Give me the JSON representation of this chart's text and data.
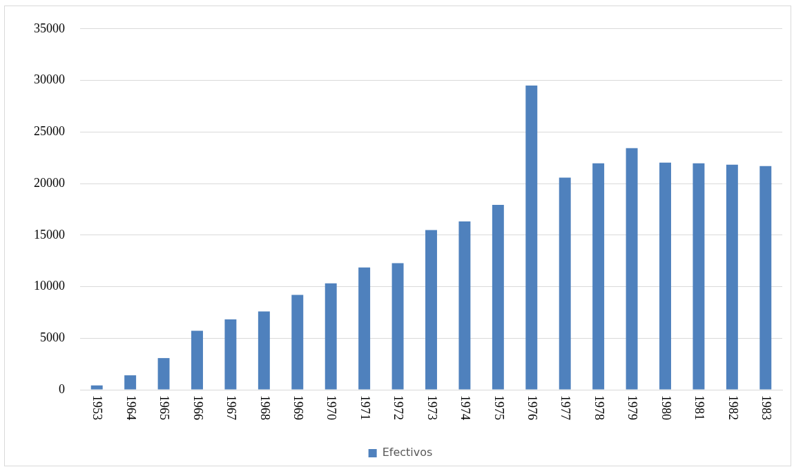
{
  "chart_data": {
    "type": "bar",
    "categories": [
      "1953",
      "1964",
      "1965",
      "1966",
      "1967",
      "1968",
      "1969",
      "1970",
      "1971",
      "1972",
      "1973",
      "1974",
      "1975",
      "1976",
      "1977",
      "1978",
      "1979",
      "1980",
      "1981",
      "1982",
      "1983"
    ],
    "series": [
      {
        "name": "Efectivos",
        "color": "#4f81bd",
        "values": [
          420,
          1400,
          3070,
          5720,
          6830,
          7600,
          9200,
          10320,
          11850,
          12270,
          15480,
          16320,
          17920,
          29500,
          20570,
          21960,
          23430,
          22030,
          21960,
          21820,
          21690
        ]
      }
    ],
    "ylim": [
      0,
      35000
    ],
    "yticks": [
      0,
      5000,
      10000,
      15000,
      20000,
      25000,
      30000,
      35000
    ],
    "grid": "y",
    "legend": "bottom"
  }
}
